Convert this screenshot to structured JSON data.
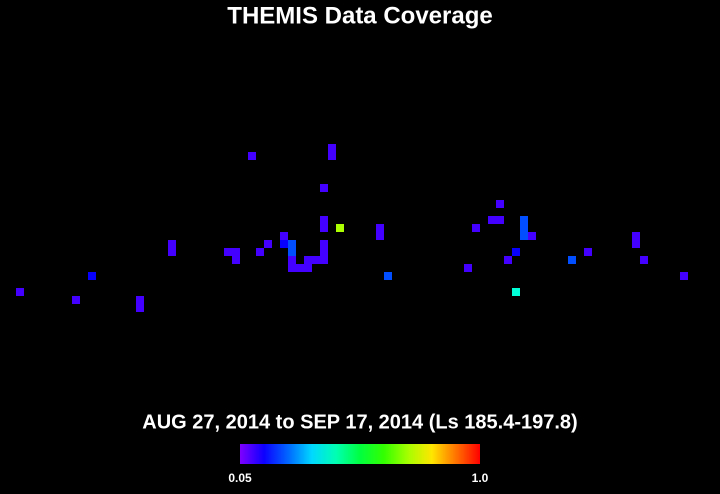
{
  "chart_data": {
    "type": "heatmap",
    "title": "THEMIS Data Coverage",
    "subtitle": "AUG 27, 2014 to SEP 17, 2014 (Ls 185.4-197.8)",
    "xlim": [
      0,
      90
    ],
    "ylim": [
      62,
      0
    ],
    "x": [
      2,
      9,
      11,
      17,
      17,
      21,
      21,
      28,
      29,
      29,
      31,
      32,
      33,
      35,
      35,
      36,
      36,
      36,
      36,
      37,
      38,
      38,
      39,
      40,
      40,
      40,
      40,
      40,
      40,
      41,
      41,
      42,
      47,
      47,
      48,
      58,
      59,
      61,
      62,
      62,
      63,
      64,
      64,
      65,
      65,
      65,
      66,
      71,
      73,
      79,
      79,
      80,
      85
    ],
    "y": [
      36,
      37,
      34,
      37,
      38,
      30,
      31,
      31,
      31,
      32,
      19,
      31,
      30,
      29,
      30,
      30,
      31,
      32,
      33,
      33,
      32,
      33,
      32,
      31,
      30,
      32,
      27,
      28,
      23,
      18,
      19,
      28,
      28,
      29,
      34,
      33,
      28,
      27,
      27,
      25,
      32,
      31,
      36,
      27,
      28,
      29,
      29,
      32,
      31,
      29,
      30,
      32,
      34
    ],
    "values": [
      0.1,
      0.1,
      0.15,
      0.1,
      0.1,
      0.1,
      0.1,
      0.1,
      0.1,
      0.1,
      0.1,
      0.1,
      0.1,
      0.1,
      0.15,
      0.22,
      0.22,
      0.1,
      0.1,
      0.1,
      0.1,
      0.1,
      0.1,
      0.1,
      0.1,
      0.1,
      0.1,
      0.1,
      0.1,
      0.1,
      0.1,
      0.72,
      0.1,
      0.1,
      0.22,
      0.1,
      0.1,
      0.1,
      0.1,
      0.1,
      0.1,
      0.15,
      0.4,
      0.22,
      0.22,
      0.22,
      0.1,
      0.22,
      0.1,
      0.1,
      0.1,
      0.1,
      0.1
    ],
    "clim": [
      0.05,
      1
    ],
    "colorbar_ticks": [
      0.05,
      {
        "value": 1,
        "label": "1.0"
      }
    ]
  }
}
